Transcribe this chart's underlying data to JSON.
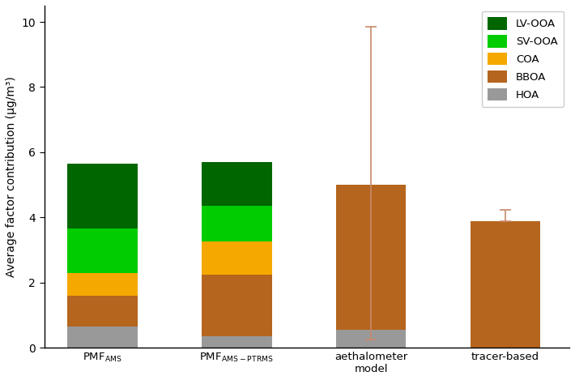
{
  "categories": [
    "PMF$_{AMS}$",
    "PMF$_{AMS-PTRMS}$",
    "aethalometer\nmodel",
    "tracer-based"
  ],
  "HOA": [
    0.65,
    0.35,
    0.55,
    0.0
  ],
  "BBOA": [
    0.95,
    1.9,
    4.45,
    3.88
  ],
  "COA": [
    0.7,
    1.0,
    0.0,
    0.0
  ],
  "SV-OOA": [
    1.35,
    1.1,
    0.0,
    0.0
  ],
  "LV-OOA": [
    2.0,
    1.35,
    0.0,
    0.0
  ],
  "error_bars": {
    "aethalometer model": {
      "y_center": 5.45,
      "yerr_low": 4.75,
      "yerr_high": 4.85
    },
    "tracer-based": {
      "y_center": 3.88,
      "yerr_low": 0.0,
      "yerr_high": 0.35
    }
  },
  "colors": {
    "HOA": "#999999",
    "BBOA": "#b5651d",
    "COA": "#f5a800",
    "SV-OOA": "#00cc00",
    "LV-OOA": "#006600"
  },
  "ylabel": "Average factor contribution (μg/m³)",
  "ylim": [
    0,
    10.5
  ],
  "yticks": [
    0,
    2,
    4,
    6,
    8,
    10
  ],
  "bar_width": 0.6,
  "error_color": "#c8896a",
  "legend_labels": [
    "LV-OOA",
    "SV-OOA",
    "COA",
    "BBOA",
    "HOA"
  ],
  "legend_colors": [
    "#006600",
    "#00cc00",
    "#f5a800",
    "#b5651d",
    "#999999"
  ],
  "x_positions": [
    0.5,
    1.65,
    2.8,
    3.95
  ],
  "xlim": [
    0.0,
    4.5
  ]
}
